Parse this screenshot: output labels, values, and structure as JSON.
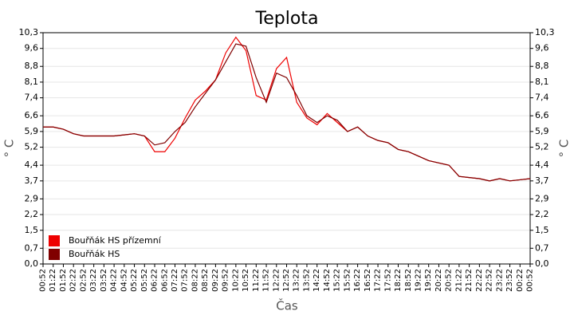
{
  "chart_data": {
    "type": "line",
    "title": "Teplota",
    "x_label": "Čas",
    "y_label": "° C",
    "categories": [
      "00:52",
      "01:22",
      "01:52",
      "02:22",
      "02:52",
      "03:22",
      "03:52",
      "04:22",
      "04:52",
      "05:22",
      "05:52",
      "06:22",
      "06:52",
      "07:22",
      "07:52",
      "08:22",
      "08:52",
      "09:22",
      "09:52",
      "10:22",
      "10:52",
      "11:22",
      "11:52",
      "12:22",
      "12:52",
      "13:22",
      "13:52",
      "14:22",
      "14:52",
      "15:22",
      "15:52",
      "16:22",
      "16:52",
      "17:22",
      "17:52",
      "18:22",
      "18:52",
      "19:22",
      "19:52",
      "20:22",
      "20:52",
      "21:22",
      "21:52",
      "22:22",
      "22:52",
      "23:22",
      "23:52",
      "00:22",
      "00:52"
    ],
    "series": [
      {
        "name": "Bouřňák HS přízemní",
        "color": "#ee0000",
        "values": [
          6.1,
          6.1,
          6.0,
          5.8,
          5.7,
          5.7,
          5.7,
          5.7,
          5.75,
          5.8,
          5.7,
          5.0,
          5.0,
          5.6,
          6.5,
          7.3,
          7.7,
          8.2,
          9.4,
          10.1,
          9.5,
          7.5,
          7.3,
          8.7,
          9.2,
          7.2,
          6.5,
          6.2,
          6.7,
          6.3,
          5.9,
          6.1,
          5.7,
          5.5,
          5.4,
          5.1,
          5.0,
          4.8,
          4.6,
          4.5,
          4.4,
          3.9,
          3.85,
          3.8,
          3.7,
          3.8,
          3.7,
          3.75,
          3.8
        ]
      },
      {
        "name": "Bouřňák HS",
        "color": "#800000",
        "values": [
          6.1,
          6.1,
          6.0,
          5.8,
          5.7,
          5.7,
          5.7,
          5.7,
          5.75,
          5.8,
          5.7,
          5.3,
          5.4,
          5.9,
          6.3,
          7.0,
          7.6,
          8.2,
          9.0,
          9.8,
          9.7,
          8.3,
          7.2,
          8.5,
          8.3,
          7.5,
          6.6,
          6.3,
          6.6,
          6.4,
          5.9,
          6.1,
          5.7,
          5.5,
          5.4,
          5.1,
          5.0,
          4.8,
          4.6,
          4.5,
          4.4,
          3.9,
          3.85,
          3.8,
          3.7,
          3.8,
          3.7,
          3.75,
          3.8
        ]
      }
    ],
    "ylim": [
      0,
      10.3
    ],
    "yticks": [
      {
        "value": 0,
        "label": "0,0"
      },
      {
        "value": 0.7,
        "label": "0,7"
      },
      {
        "value": 1.5,
        "label": "1,5"
      },
      {
        "value": 2.2,
        "label": "2,2"
      },
      {
        "value": 2.9,
        "label": "2,9"
      },
      {
        "value": 3.7,
        "label": "3,7"
      },
      {
        "value": 4.4,
        "label": "4,4"
      },
      {
        "value": 5.2,
        "label": "5,2"
      },
      {
        "value": 5.9,
        "label": "5,9"
      },
      {
        "value": 6.6,
        "label": "6,6"
      },
      {
        "value": 7.4,
        "label": "7,4"
      },
      {
        "value": 8.1,
        "label": "8,1"
      },
      {
        "value": 8.8,
        "label": "8,8"
      },
      {
        "value": 9.6,
        "label": "9,6"
      },
      {
        "value": 10.3,
        "label": "10,3"
      }
    ],
    "grid": true,
    "legend": "lower left"
  }
}
